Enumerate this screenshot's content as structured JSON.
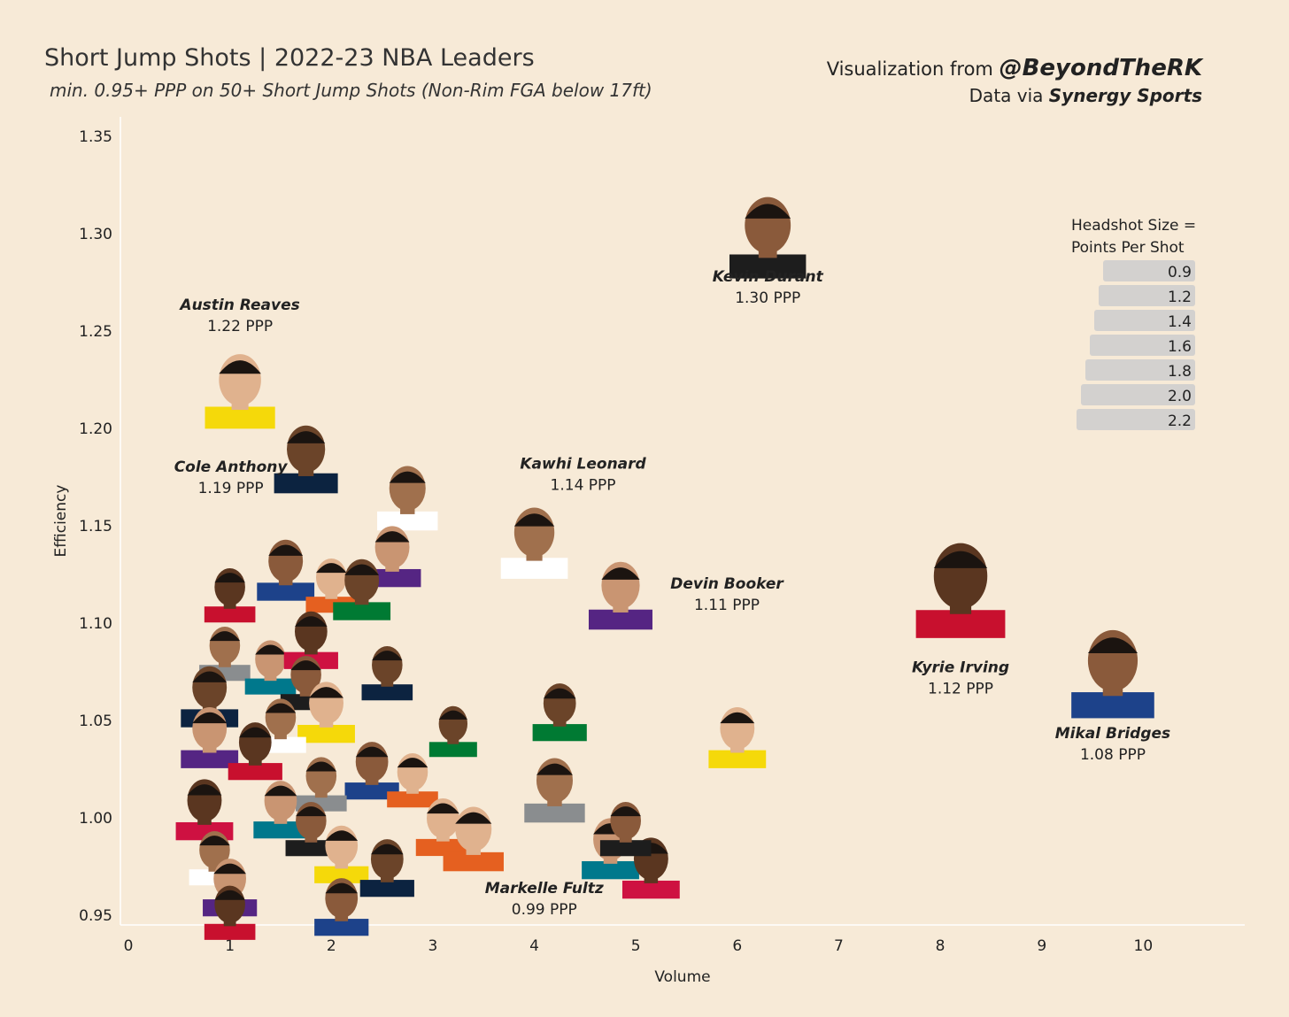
{
  "header": {
    "title": "Short Jump Shots | 2022-23 NBA Leaders",
    "subtitle": "min. 0.95+ PPP on 50+ Short Jump Shots (Non-Rim FGA below 17ft)",
    "credit_prefix": "Visualization from ",
    "credit_handle": "@BeyondTheRK",
    "data_prefix": "Data via ",
    "data_source": "Synergy Sports"
  },
  "colors": {
    "background": "#f7ead7",
    "legend_bar": "#d3d1cf",
    "skin": "#9a6a4a"
  },
  "chart_data": {
    "type": "scatter",
    "xlabel": "Volume",
    "ylabel": "Efficiency",
    "xlim": [
      0,
      11
    ],
    "ylim": [
      0.945,
      1.36
    ],
    "xticks": [
      "0",
      "1",
      "2",
      "3",
      "4",
      "5",
      "6",
      "7",
      "8",
      "9",
      "10"
    ],
    "yticks": [
      "0.95",
      "1.00",
      "1.05",
      "1.10",
      "1.15",
      "1.20",
      "1.25",
      "1.30",
      "1.35"
    ],
    "size_encoding": "Points Per Shot",
    "labeled_points": [
      {
        "name": "Kevin Durant",
        "ppp_label": "1.30 PPP",
        "x": 6.3,
        "y": 1.299,
        "size": 2.4
      },
      {
        "name": "Austin Reaves",
        "ppp_label": "1.22 PPP",
        "x": 1.1,
        "y": 1.22,
        "size": 2.2
      },
      {
        "name": "Cole Anthony",
        "ppp_label": "1.19 PPP",
        "x": 1.75,
        "y": 1.185,
        "size": 2.0
      },
      {
        "name": "Kawhi Leonard",
        "ppp_label": "1.14 PPP",
        "x": 4.0,
        "y": 1.142,
        "size": 2.1
      },
      {
        "name": "Devin Booker",
        "ppp_label": "1.11 PPP",
        "x": 4.85,
        "y": 1.115,
        "size": 2.0
      },
      {
        "name": "Kyrie Irving",
        "ppp_label": "1.12 PPP",
        "x": 8.2,
        "y": 1.118,
        "size": 2.8
      },
      {
        "name": "Mikal Bridges",
        "ppp_label": "1.08 PPP",
        "x": 9.7,
        "y": 1.075,
        "size": 2.6
      },
      {
        "name": "Markelle Fultz",
        "ppp_label": "0.99 PPP",
        "x": 3.4,
        "y": 0.99,
        "size": 1.9
      }
    ],
    "other_points": [
      {
        "x": 2.75,
        "y": 1.165,
        "size": 1.9
      },
      {
        "x": 2.6,
        "y": 1.135,
        "size": 1.8
      },
      {
        "x": 1.0,
        "y": 1.115,
        "size": 1.6
      },
      {
        "x": 1.55,
        "y": 1.128,
        "size": 1.8
      },
      {
        "x": 2.0,
        "y": 1.12,
        "size": 1.6
      },
      {
        "x": 2.3,
        "y": 1.118,
        "size": 1.8
      },
      {
        "x": 0.95,
        "y": 1.085,
        "size": 1.6
      },
      {
        "x": 1.4,
        "y": 1.078,
        "size": 1.6
      },
      {
        "x": 1.8,
        "y": 1.092,
        "size": 1.7
      },
      {
        "x": 1.75,
        "y": 1.07,
        "size": 1.6
      },
      {
        "x": 1.95,
        "y": 1.055,
        "size": 1.8
      },
      {
        "x": 0.8,
        "y": 1.063,
        "size": 1.8
      },
      {
        "x": 1.5,
        "y": 1.048,
        "size": 1.6
      },
      {
        "x": 0.8,
        "y": 1.042,
        "size": 1.8
      },
      {
        "x": 1.25,
        "y": 1.035,
        "size": 1.7
      },
      {
        "x": 2.4,
        "y": 1.025,
        "size": 1.7
      },
      {
        "x": 2.8,
        "y": 1.02,
        "size": 1.6
      },
      {
        "x": 3.2,
        "y": 1.045,
        "size": 1.5
      },
      {
        "x": 1.9,
        "y": 1.018,
        "size": 1.6
      },
      {
        "x": 1.5,
        "y": 1.005,
        "size": 1.7
      },
      {
        "x": 0.75,
        "y": 1.005,
        "size": 1.8
      },
      {
        "x": 1.8,
        "y": 0.995,
        "size": 1.6
      },
      {
        "x": 2.1,
        "y": 0.982,
        "size": 1.7
      },
      {
        "x": 2.55,
        "y": 0.975,
        "size": 1.7
      },
      {
        "x": 0.85,
        "y": 0.98,
        "size": 1.6
      },
      {
        "x": 1.0,
        "y": 0.965,
        "size": 1.7
      },
      {
        "x": 1.0,
        "y": 0.952,
        "size": 1.6
      },
      {
        "x": 2.1,
        "y": 0.955,
        "size": 1.7
      },
      {
        "x": 3.1,
        "y": 0.996,
        "size": 1.7
      },
      {
        "x": 4.25,
        "y": 1.055,
        "size": 1.7
      },
      {
        "x": 4.2,
        "y": 1.015,
        "size": 1.9
      },
      {
        "x": 4.75,
        "y": 0.985,
        "size": 1.8
      },
      {
        "x": 5.15,
        "y": 0.975,
        "size": 1.8
      },
      {
        "x": 4.9,
        "y": 0.995,
        "size": 1.6
      },
      {
        "x": 6.0,
        "y": 1.042,
        "size": 1.8
      },
      {
        "x": 2.55,
        "y": 1.075,
        "size": 1.6
      }
    ]
  },
  "legend": {
    "title_line1": "Headshot Size =",
    "title_line2": "Points Per Shot",
    "values": [
      "0.9",
      "1.2",
      "1.4",
      "1.6",
      "1.8",
      "2.0",
      "2.2"
    ]
  }
}
